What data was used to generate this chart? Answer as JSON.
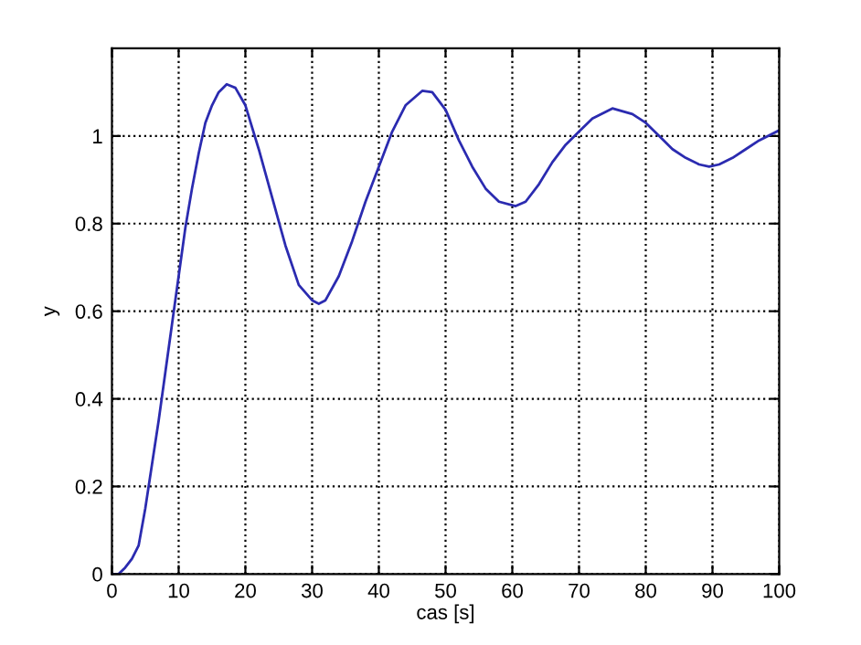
{
  "chart_data": {
    "type": "line",
    "xlabel": "cas [s]",
    "ylabel": "y",
    "series": [
      {
        "color": "#2b2bb0",
        "x": [
          0,
          1,
          2,
          3,
          4,
          5,
          6,
          7,
          8,
          9,
          10,
          11,
          12,
          13,
          14,
          15,
          16,
          17.2,
          18.5,
          20,
          22,
          24,
          26,
          28,
          30,
          31,
          32,
          34,
          36,
          38,
          40,
          42,
          44,
          46.5,
          48,
          50,
          52,
          54,
          56,
          58,
          60.5,
          62,
          64,
          66,
          68,
          70,
          72,
          75,
          78,
          80,
          82,
          84,
          86,
          88,
          89.5,
          91,
          93,
          95,
          97,
          100
        ],
        "values": [
          0,
          0,
          0.015,
          0.035,
          0.065,
          0.15,
          0.25,
          0.35,
          0.46,
          0.57,
          0.68,
          0.79,
          0.88,
          0.96,
          1.03,
          1.07,
          1.1,
          1.118,
          1.11,
          1.07,
          0.97,
          0.86,
          0.75,
          0.66,
          0.625,
          0.617,
          0.625,
          0.68,
          0.76,
          0.85,
          0.93,
          1.01,
          1.07,
          1.103,
          1.1,
          1.06,
          0.99,
          0.93,
          0.88,
          0.85,
          0.84,
          0.85,
          0.89,
          0.94,
          0.98,
          1.01,
          1.04,
          1.063,
          1.05,
          1.03,
          1.0,
          0.97,
          0.95,
          0.935,
          0.93,
          0.935,
          0.95,
          0.97,
          0.99,
          1.013
        ]
      }
    ],
    "xlim": [
      0,
      100
    ],
    "ylim": [
      0,
      1.2
    ],
    "xticks": [
      0,
      10,
      20,
      30,
      40,
      50,
      60,
      70,
      80,
      90,
      100
    ],
    "yticks": [
      0,
      0.2,
      0.4,
      0.6,
      0.8,
      1
    ],
    "grid": true,
    "line_style": "solid"
  }
}
